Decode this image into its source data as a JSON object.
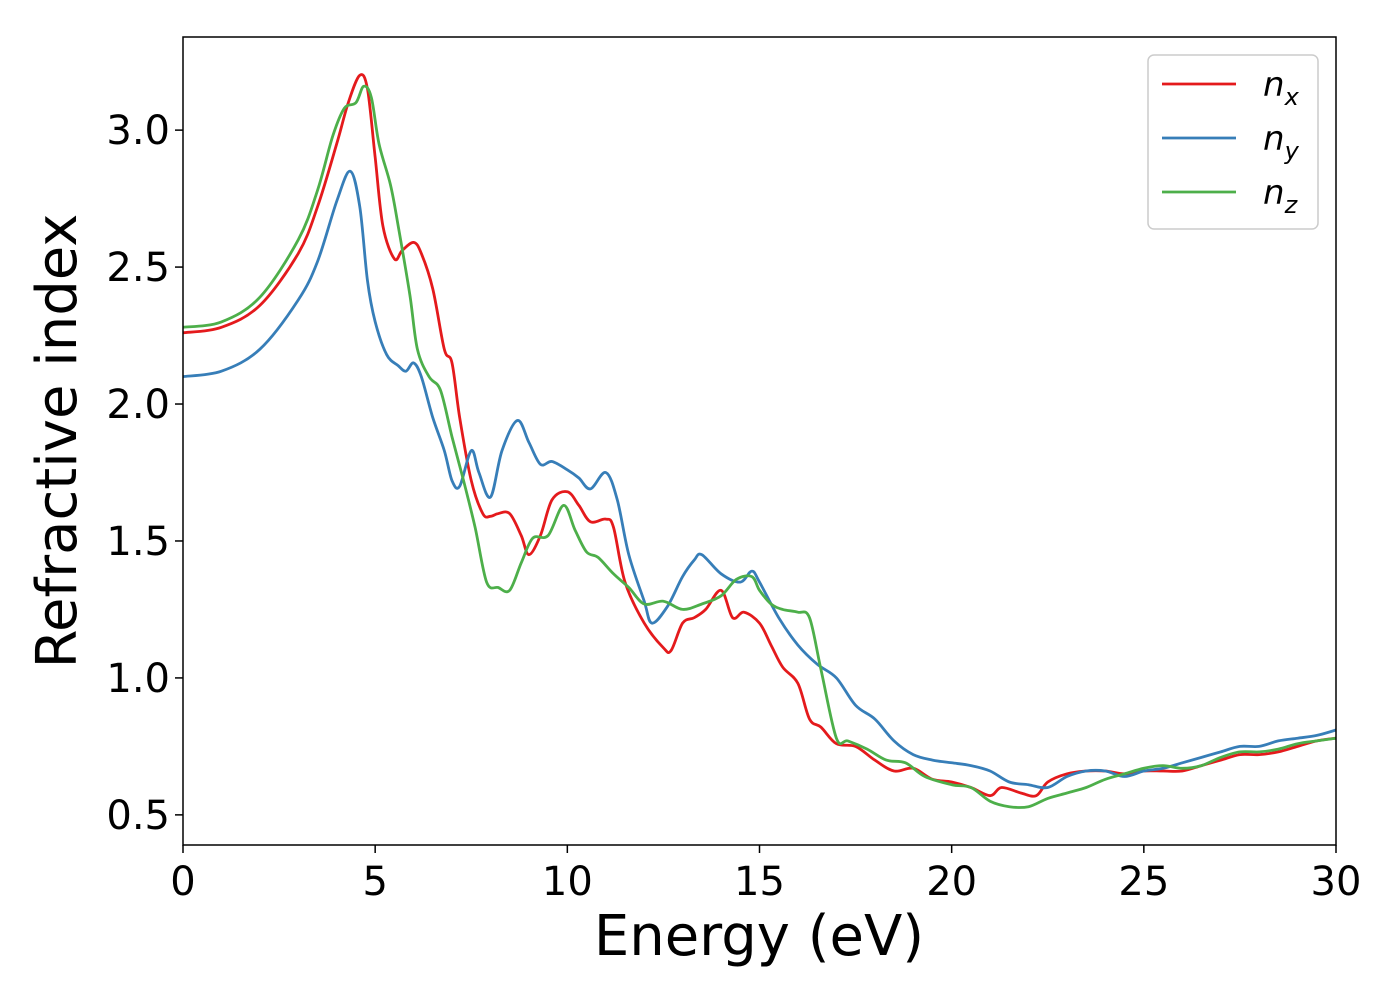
{
  "chart_data": {
    "type": "line",
    "xlabel": "Energy (eV)",
    "ylabel": "Refractive index",
    "xlim": [
      0,
      30
    ],
    "ylim": [
      0.39,
      3.34
    ],
    "xticks": [
      0,
      5,
      10,
      15,
      20,
      25,
      30
    ],
    "yticks": [
      0.5,
      1.0,
      1.5,
      2.0,
      2.5,
      3.0
    ],
    "xtick_labels": [
      "0",
      "5",
      "10",
      "15",
      "20",
      "25",
      "30"
    ],
    "ytick_labels": [
      "0.5",
      "1.0",
      "1.5",
      "2.0",
      "2.5",
      "3.0"
    ],
    "grid": false,
    "legend_position": "top-right",
    "series": [
      {
        "name": "n",
        "subscript": "x",
        "color": "#e41a1c",
        "points": [
          [
            0,
            2.26
          ],
          [
            1,
            2.28
          ],
          [
            2,
            2.36
          ],
          [
            3,
            2.55
          ],
          [
            3.5,
            2.72
          ],
          [
            4,
            2.95
          ],
          [
            4.3,
            3.1
          ],
          [
            4.6,
            3.2
          ],
          [
            4.8,
            3.15
          ],
          [
            5.0,
            2.9
          ],
          [
            5.2,
            2.65
          ],
          [
            5.5,
            2.53
          ],
          [
            5.7,
            2.56
          ],
          [
            6.0,
            2.59
          ],
          [
            6.2,
            2.55
          ],
          [
            6.5,
            2.42
          ],
          [
            6.8,
            2.2
          ],
          [
            7.0,
            2.15
          ],
          [
            7.2,
            1.95
          ],
          [
            7.5,
            1.72
          ],
          [
            7.8,
            1.6
          ],
          [
            8.0,
            1.59
          ],
          [
            8.2,
            1.6
          ],
          [
            8.5,
            1.6
          ],
          [
            8.8,
            1.52
          ],
          [
            9.0,
            1.45
          ],
          [
            9.3,
            1.52
          ],
          [
            9.6,
            1.65
          ],
          [
            10.0,
            1.68
          ],
          [
            10.3,
            1.63
          ],
          [
            10.6,
            1.57
          ],
          [
            11.0,
            1.58
          ],
          [
            11.2,
            1.55
          ],
          [
            11.5,
            1.35
          ],
          [
            12.0,
            1.2
          ],
          [
            12.5,
            1.11
          ],
          [
            12.7,
            1.1
          ],
          [
            13.0,
            1.2
          ],
          [
            13.3,
            1.22
          ],
          [
            13.6,
            1.25
          ],
          [
            14.0,
            1.32
          ],
          [
            14.3,
            1.22
          ],
          [
            14.6,
            1.24
          ],
          [
            15.0,
            1.2
          ],
          [
            15.3,
            1.12
          ],
          [
            15.6,
            1.04
          ],
          [
            16.0,
            0.98
          ],
          [
            16.3,
            0.85
          ],
          [
            16.6,
            0.82
          ],
          [
            17.0,
            0.76
          ],
          [
            17.5,
            0.75
          ],
          [
            18.0,
            0.7
          ],
          [
            18.5,
            0.66
          ],
          [
            19.0,
            0.67
          ],
          [
            19.5,
            0.63
          ],
          [
            20.0,
            0.62
          ],
          [
            20.5,
            0.6
          ],
          [
            21.0,
            0.57
          ],
          [
            21.3,
            0.6
          ],
          [
            21.8,
            0.58
          ],
          [
            22.2,
            0.57
          ],
          [
            22.5,
            0.62
          ],
          [
            23.0,
            0.65
          ],
          [
            23.5,
            0.66
          ],
          [
            24.0,
            0.66
          ],
          [
            24.5,
            0.65
          ],
          [
            25.0,
            0.66
          ],
          [
            25.5,
            0.66
          ],
          [
            26.0,
            0.66
          ],
          [
            26.5,
            0.68
          ],
          [
            27.0,
            0.7
          ],
          [
            27.5,
            0.72
          ],
          [
            28.0,
            0.72
          ],
          [
            28.5,
            0.73
          ],
          [
            29.0,
            0.75
          ],
          [
            29.5,
            0.77
          ],
          [
            30.0,
            0.78
          ]
        ]
      },
      {
        "name": "n",
        "subscript": "y",
        "color": "#377eb8",
        "points": [
          [
            0,
            2.1
          ],
          [
            1,
            2.12
          ],
          [
            2,
            2.2
          ],
          [
            3,
            2.38
          ],
          [
            3.5,
            2.52
          ],
          [
            4.0,
            2.74
          ],
          [
            4.35,
            2.85
          ],
          [
            4.6,
            2.72
          ],
          [
            4.8,
            2.45
          ],
          [
            5.0,
            2.3
          ],
          [
            5.3,
            2.18
          ],
          [
            5.6,
            2.14
          ],
          [
            5.8,
            2.12
          ],
          [
            6.0,
            2.15
          ],
          [
            6.2,
            2.1
          ],
          [
            6.5,
            1.95
          ],
          [
            6.8,
            1.83
          ],
          [
            7.0,
            1.72
          ],
          [
            7.2,
            1.7
          ],
          [
            7.5,
            1.83
          ],
          [
            7.7,
            1.75
          ],
          [
            8.0,
            1.66
          ],
          [
            8.3,
            1.83
          ],
          [
            8.7,
            1.94
          ],
          [
            9.0,
            1.86
          ],
          [
            9.3,
            1.78
          ],
          [
            9.6,
            1.79
          ],
          [
            10.0,
            1.76
          ],
          [
            10.3,
            1.73
          ],
          [
            10.6,
            1.69
          ],
          [
            11.0,
            1.75
          ],
          [
            11.3,
            1.65
          ],
          [
            11.6,
            1.45
          ],
          [
            12.0,
            1.28
          ],
          [
            12.2,
            1.2
          ],
          [
            12.6,
            1.26
          ],
          [
            13.0,
            1.37
          ],
          [
            13.3,
            1.43
          ],
          [
            13.5,
            1.45
          ],
          [
            14.0,
            1.38
          ],
          [
            14.5,
            1.35
          ],
          [
            14.8,
            1.39
          ],
          [
            15.0,
            1.35
          ],
          [
            15.5,
            1.22
          ],
          [
            16.0,
            1.12
          ],
          [
            16.5,
            1.05
          ],
          [
            17.0,
            1.0
          ],
          [
            17.5,
            0.9
          ],
          [
            18.0,
            0.85
          ],
          [
            18.5,
            0.77
          ],
          [
            19.0,
            0.72
          ],
          [
            19.5,
            0.7
          ],
          [
            20.0,
            0.69
          ],
          [
            20.5,
            0.68
          ],
          [
            21.0,
            0.66
          ],
          [
            21.5,
            0.62
          ],
          [
            22.0,
            0.61
          ],
          [
            22.5,
            0.6
          ],
          [
            23.0,
            0.64
          ],
          [
            23.5,
            0.66
          ],
          [
            24.0,
            0.66
          ],
          [
            24.5,
            0.64
          ],
          [
            25.0,
            0.66
          ],
          [
            25.5,
            0.67
          ],
          [
            26.0,
            0.69
          ],
          [
            26.5,
            0.71
          ],
          [
            27.0,
            0.73
          ],
          [
            27.5,
            0.75
          ],
          [
            28.0,
            0.75
          ],
          [
            28.5,
            0.77
          ],
          [
            29.0,
            0.78
          ],
          [
            29.5,
            0.79
          ],
          [
            30.0,
            0.81
          ]
        ]
      },
      {
        "name": "n",
        "subscript": "z",
        "color": "#4daf4a",
        "points": [
          [
            0,
            2.28
          ],
          [
            1,
            2.3
          ],
          [
            2,
            2.39
          ],
          [
            3,
            2.6
          ],
          [
            3.5,
            2.78
          ],
          [
            3.9,
            2.98
          ],
          [
            4.2,
            3.08
          ],
          [
            4.5,
            3.1
          ],
          [
            4.7,
            3.16
          ],
          [
            4.9,
            3.12
          ],
          [
            5.1,
            2.95
          ],
          [
            5.4,
            2.8
          ],
          [
            5.6,
            2.65
          ],
          [
            5.9,
            2.4
          ],
          [
            6.1,
            2.2
          ],
          [
            6.4,
            2.1
          ],
          [
            6.7,
            2.05
          ],
          [
            7.0,
            1.88
          ],
          [
            7.3,
            1.72
          ],
          [
            7.6,
            1.55
          ],
          [
            7.9,
            1.35
          ],
          [
            8.2,
            1.33
          ],
          [
            8.5,
            1.32
          ],
          [
            8.8,
            1.42
          ],
          [
            9.1,
            1.51
          ],
          [
            9.5,
            1.52
          ],
          [
            9.9,
            1.63
          ],
          [
            10.2,
            1.54
          ],
          [
            10.5,
            1.46
          ],
          [
            10.8,
            1.44
          ],
          [
            11.2,
            1.38
          ],
          [
            11.6,
            1.33
          ],
          [
            12.0,
            1.27
          ],
          [
            12.5,
            1.28
          ],
          [
            13.0,
            1.25
          ],
          [
            13.5,
            1.27
          ],
          [
            14.0,
            1.3
          ],
          [
            14.4,
            1.36
          ],
          [
            14.8,
            1.37
          ],
          [
            15.0,
            1.32
          ],
          [
            15.3,
            1.27
          ],
          [
            15.6,
            1.25
          ],
          [
            16.0,
            1.24
          ],
          [
            16.3,
            1.22
          ],
          [
            16.6,
            1.03
          ],
          [
            17.0,
            0.78
          ],
          [
            17.3,
            0.77
          ],
          [
            17.8,
            0.74
          ],
          [
            18.3,
            0.7
          ],
          [
            18.8,
            0.69
          ],
          [
            19.3,
            0.64
          ],
          [
            20.0,
            0.61
          ],
          [
            20.5,
            0.6
          ],
          [
            21.0,
            0.55
          ],
          [
            21.5,
            0.53
          ],
          [
            22.0,
            0.53
          ],
          [
            22.5,
            0.56
          ],
          [
            23.0,
            0.58
          ],
          [
            23.5,
            0.6
          ],
          [
            24.0,
            0.63
          ],
          [
            24.5,
            0.65
          ],
          [
            25.0,
            0.67
          ],
          [
            25.5,
            0.68
          ],
          [
            26.0,
            0.67
          ],
          [
            26.5,
            0.68
          ],
          [
            27.0,
            0.71
          ],
          [
            27.5,
            0.73
          ],
          [
            28.0,
            0.73
          ],
          [
            28.5,
            0.74
          ],
          [
            29.0,
            0.76
          ],
          [
            29.5,
            0.77
          ],
          [
            30.0,
            0.78
          ]
        ]
      }
    ]
  }
}
